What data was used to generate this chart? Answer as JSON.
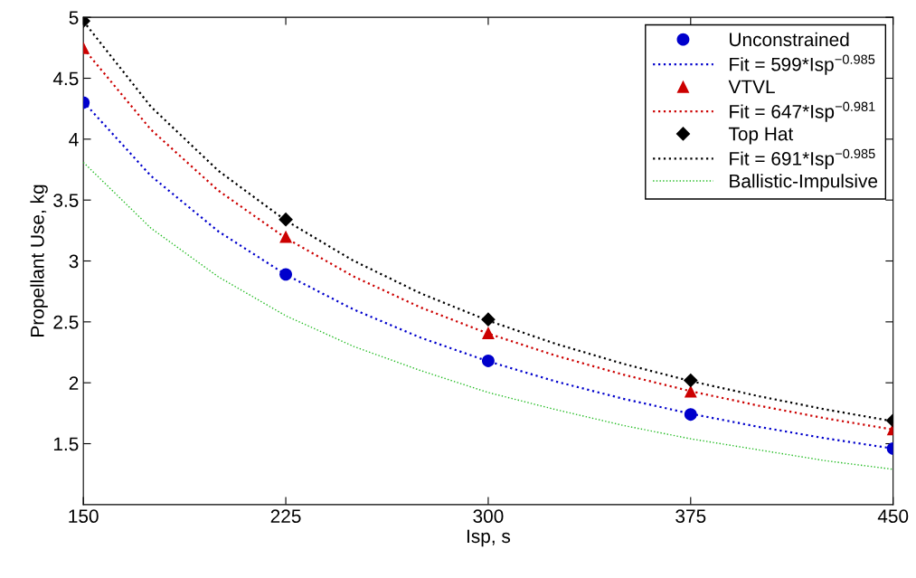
{
  "chart_data": {
    "type": "line",
    "xlabel": "Isp, s",
    "ylabel": "Propellant Use, kg",
    "xlim": [
      150,
      450
    ],
    "xticks": [
      150,
      225,
      300,
      375,
      450
    ],
    "ylim": [
      1,
      5
    ],
    "yticks": [
      1.5,
      2,
      2.5,
      3,
      3.5,
      4,
      4.5,
      5
    ],
    "grid": false,
    "legend": "top right",
    "series": [
      {
        "name": "Unconstrained",
        "type": "scatter",
        "marker": "circle",
        "color": "#0000cc",
        "x": [
          150,
          225,
          300,
          375,
          450
        ],
        "values": [
          4.3,
          2.89,
          2.18,
          1.74,
          1.46
        ]
      },
      {
        "name": "Fit = 599*Isp$^{−0.985}$",
        "type": "line",
        "marker": "none",
        "line_style": "dotted",
        "color": "#0000cc",
        "x": [
          150,
          175,
          200,
          225,
          250,
          275,
          300,
          325,
          350,
          375,
          400,
          425,
          450
        ],
        "values": [
          4.307,
          3.699,
          3.243,
          2.888,
          2.603,
          2.37,
          2.176,
          2.011,
          1.869,
          1.746,
          1.639,
          1.544,
          1.46
        ]
      },
      {
        "name": "VTVL",
        "type": "scatter",
        "marker": "triangle",
        "color": "#cc0000",
        "x": [
          150,
          225,
          300,
          375,
          450
        ],
        "values": [
          4.75,
          3.2,
          2.41,
          1.93,
          1.62
        ]
      },
      {
        "name": "Fit = 647*Isp$^{−0.981}$",
        "type": "line",
        "marker": "none",
        "line_style": "dotted",
        "color": "#cc0000",
        "x": [
          150,
          175,
          200,
          225,
          250,
          275,
          300,
          325,
          350,
          375,
          400,
          425,
          450
        ],
        "values": [
          4.746,
          4.079,
          3.578,
          3.188,
          2.874,
          2.618,
          2.404,
          2.223,
          2.067,
          1.931,
          1.813,
          1.708,
          1.616
        ]
      },
      {
        "name": "Top Hat",
        "type": "scatter",
        "marker": "diamond",
        "color": "#000000",
        "x": [
          150,
          225,
          300,
          375,
          450
        ],
        "values": [
          4.97,
          3.34,
          2.52,
          2.02,
          1.69
        ]
      },
      {
        "name": "Fit = 691*Isp$^{−0.985}$",
        "type": "line",
        "marker": "none",
        "line_style": "dotted",
        "color": "#000000",
        "x": [
          150,
          175,
          200,
          225,
          250,
          275,
          300,
          325,
          350,
          375,
          400,
          425,
          450
        ],
        "values": [
          4.969,
          4.267,
          3.741,
          3.332,
          3.003,
          2.734,
          2.51,
          2.32,
          2.156,
          2.014,
          1.891,
          1.781,
          1.684
        ]
      },
      {
        "name": "Ballistic-Impulsive",
        "type": "line",
        "marker": "none",
        "line_style": "dotted",
        "color": "#22bb22",
        "x": [
          150,
          175,
          200,
          225,
          250,
          275,
          300,
          325,
          350,
          375,
          400,
          425,
          450
        ],
        "values": [
          3.81,
          3.27,
          2.87,
          2.55,
          2.3,
          2.1,
          1.92,
          1.78,
          1.65,
          1.54,
          1.45,
          1.36,
          1.29
        ]
      }
    ]
  }
}
